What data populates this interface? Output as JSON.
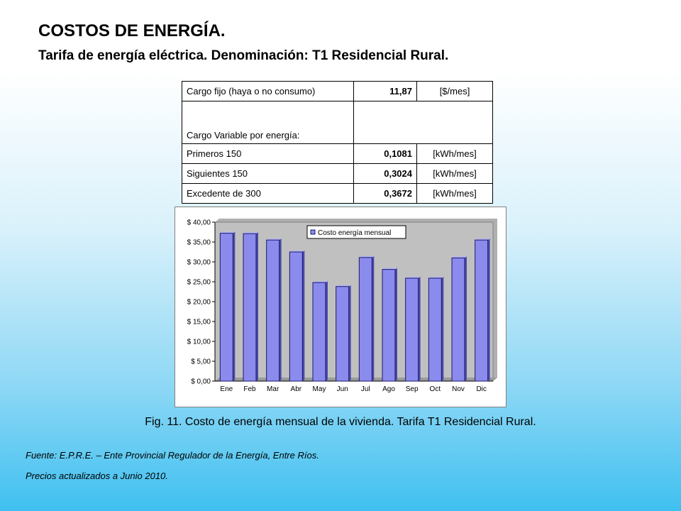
{
  "header": {
    "title": "COSTOS DE ENERGÍA.",
    "subtitle": "Tarifa de energía eléctrica. Denominación: T1 Residencial Rural."
  },
  "tariff_table": {
    "rows": [
      {
        "label": "Cargo fijo (haya o no consumo)",
        "value": "11,87",
        "unit": "[$/mes]"
      },
      {
        "label": "Cargo Variable por energía:",
        "value": "",
        "unit": ""
      },
      {
        "label": "Primeros 150",
        "value": "0,1081",
        "unit": "[kWh/mes]"
      },
      {
        "label": "Siguientes 150",
        "value": "0,3024",
        "unit": "[kWh/mes]"
      },
      {
        "label": "Excedente de 300",
        "value": "0,3672",
        "unit": "[kWh/mes]"
      }
    ]
  },
  "chart_data": {
    "type": "bar",
    "categories": [
      "Ene",
      "Feb",
      "Mar",
      "Abr",
      "May",
      "Jun",
      "Jul",
      "Ago",
      "Sep",
      "Oct",
      "Nov",
      "Dic"
    ],
    "series": [
      {
        "name": "Costo energía mensual",
        "values": [
          37.2,
          37.1,
          35.5,
          32.5,
          24.8,
          23.8,
          31.1,
          28.1,
          25.9,
          25.9,
          31.0,
          35.5
        ]
      }
    ],
    "ylim": [
      0,
      40
    ],
    "yticks": [
      0,
      5,
      10,
      15,
      20,
      25,
      30,
      35,
      40
    ],
    "ytick_labels": [
      "$ 0,00",
      "$ 5,00",
      "$ 10,00",
      "$ 15,00",
      "$ 20,00",
      "$ 25,00",
      "$ 30,00",
      "$ 35,00",
      "$ 40,00"
    ],
    "grid": false,
    "legend_position": "top-right",
    "colors": {
      "bar_fill": "#8b8bee",
      "bar_stroke": "#1a1a66",
      "plot_background": "#c0c0c0"
    }
  },
  "caption": "Fig. 11. Costo de energía mensual de la vivienda. Tarifa T1 Residencial Rural.",
  "footnotes": {
    "source": "Fuente: E.P.R.E. – Ente Provincial Regulador de la Energía, Entre Ríos.",
    "updated": "Precios actualizados a Junio 2010."
  }
}
